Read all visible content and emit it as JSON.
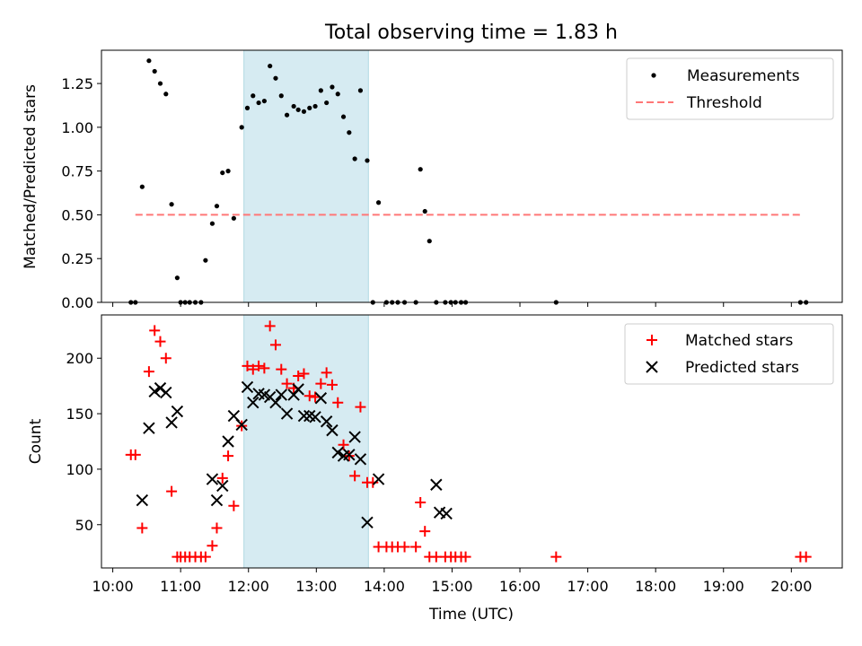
{
  "chart_data": [
    {
      "type": "scatter",
      "title": "Total observing time = 1.83 h",
      "xlabel": "",
      "ylabel": "Matched/Predicted stars",
      "xlim": [
        "09:50",
        "20:45"
      ],
      "ylim": [
        0,
        1.44
      ],
      "yticks": [
        "0.00",
        "0.25",
        "0.50",
        "0.75",
        "1.00",
        "1.25"
      ],
      "shaded_interval": [
        "11:56",
        "13:46"
      ],
      "legend_position": "top-right",
      "series": [
        {
          "name": "Measurements",
          "marker": "dot",
          "color": "#000000",
          "x": [
            "10:16",
            "10:20",
            "10:26",
            "10:32",
            "10:37",
            "10:42",
            "10:47",
            "10:52",
            "10:57",
            "11:00",
            "11:04",
            "11:08",
            "11:13",
            "11:18",
            "11:22",
            "11:28",
            "11:32",
            "11:37",
            "11:42",
            "11:47",
            "11:54",
            "11:59",
            "12:04",
            "12:09",
            "12:14",
            "12:19",
            "12:24",
            "12:29",
            "12:34",
            "12:40",
            "12:44",
            "12:49",
            "12:54",
            "12:59",
            "13:04",
            "13:09",
            "13:14",
            "13:19",
            "13:24",
            "13:29",
            "13:34",
            "13:39",
            "13:45",
            "13:50",
            "13:55",
            "14:02",
            "14:07",
            "14:12",
            "14:18",
            "14:28",
            "14:32",
            "14:36",
            "14:40",
            "14:46",
            "14:54",
            "14:59",
            "15:03",
            "15:08",
            "15:12",
            "16:32",
            "20:08",
            "20:13"
          ],
          "y": [
            0,
            0,
            0.66,
            1.38,
            1.32,
            1.25,
            1.19,
            0.56,
            0.14,
            0,
            0,
            0,
            0,
            0,
            0.24,
            0.45,
            0.55,
            0.74,
            0.75,
            0.48,
            1.0,
            1.11,
            1.18,
            1.14,
            1.15,
            1.35,
            1.28,
            1.18,
            1.07,
            1.12,
            1.1,
            1.09,
            1.11,
            1.12,
            1.21,
            1.14,
            1.23,
            1.19,
            1.06,
            0.97,
            0.82,
            1.21,
            0.81,
            0,
            0.57,
            0,
            0,
            0,
            0,
            0,
            0.76,
            0.52,
            0.35,
            0,
            0,
            0,
            0,
            0,
            0,
            0,
            0,
            0
          ]
        },
        {
          "name": "Threshold",
          "style": "dashed",
          "color": "#ff7777",
          "x": [
            "10:20",
            "20:10"
          ],
          "y": [
            0.5,
            0.5
          ]
        }
      ]
    },
    {
      "type": "scatter",
      "title": "",
      "xlabel": "Time (UTC)",
      "ylabel": "Count",
      "xlim": [
        "09:50",
        "20:45"
      ],
      "ylim": [
        11,
        239
      ],
      "yticks": [
        "50",
        "100",
        "150",
        "200"
      ],
      "xticks": [
        "10:00",
        "11:00",
        "12:00",
        "13:00",
        "14:00",
        "15:00",
        "16:00",
        "17:00",
        "18:00",
        "19:00",
        "20:00"
      ],
      "shaded_interval": [
        "11:56",
        "13:46"
      ],
      "legend_position": "top-right",
      "series": [
        {
          "name": "Matched stars",
          "marker": "plus",
          "color": "#ff0000",
          "x": [
            "10:16",
            "10:20",
            "10:26",
            "10:32",
            "10:37",
            "10:42",
            "10:47",
            "10:52",
            "10:57",
            "11:00",
            "11:04",
            "11:08",
            "11:13",
            "11:18",
            "11:22",
            "11:28",
            "11:32",
            "11:37",
            "11:42",
            "11:47",
            "11:54",
            "11:59",
            "12:04",
            "12:09",
            "12:14",
            "12:19",
            "12:24",
            "12:29",
            "12:34",
            "12:40",
            "12:44",
            "12:49",
            "12:54",
            "12:59",
            "13:04",
            "13:09",
            "13:14",
            "13:19",
            "13:24",
            "13:29",
            "13:34",
            "13:39",
            "13:45",
            "13:50",
            "13:55",
            "14:02",
            "14:07",
            "14:12",
            "14:18",
            "14:28",
            "14:32",
            "14:36",
            "14:40",
            "14:46",
            "14:54",
            "14:59",
            "15:03",
            "15:08",
            "15:12",
            "16:32",
            "20:08",
            "20:13"
          ],
          "y": [
            113,
            113,
            47,
            188,
            225,
            215,
            200,
            80,
            21,
            21,
            21,
            21,
            21,
            21,
            21,
            31,
            47,
            92,
            112,
            67,
            139,
            193,
            190,
            193,
            191,
            229,
            212,
            190,
            177,
            173,
            184,
            186,
            166,
            165,
            177,
            187,
            176,
            160,
            122,
            112,
            94,
            156,
            88,
            88,
            30,
            30,
            30,
            30,
            30,
            30,
            70,
            44,
            21,
            21,
            21,
            21,
            21,
            21,
            21,
            21,
            21,
            21
          ]
        },
        {
          "name": "Predicted stars",
          "marker": "x",
          "color": "#000000",
          "x": [
            "10:26",
            "10:32",
            "10:37",
            "10:42",
            "10:47",
            "10:52",
            "10:57",
            "11:28",
            "11:32",
            "11:37",
            "11:42",
            "11:47",
            "11:54",
            "11:59",
            "12:04",
            "12:09",
            "12:14",
            "12:19",
            "12:24",
            "12:29",
            "12:34",
            "12:40",
            "12:44",
            "12:49",
            "12:54",
            "12:59",
            "13:04",
            "13:09",
            "13:14",
            "13:19",
            "13:24",
            "13:29",
            "13:34",
            "13:39",
            "13:45",
            "13:55",
            "14:46",
            "14:49",
            "14:55"
          ],
          "y": [
            72,
            137,
            170,
            173,
            169,
            142,
            152,
            91,
            72,
            85,
            125,
            148,
            140,
            174,
            160,
            168,
            167,
            165,
            160,
            167,
            150,
            167,
            172,
            148,
            148,
            147,
            164,
            143,
            135,
            115,
            112,
            113,
            129,
            109,
            52,
            91,
            86,
            61,
            60
          ]
        }
      ]
    }
  ]
}
